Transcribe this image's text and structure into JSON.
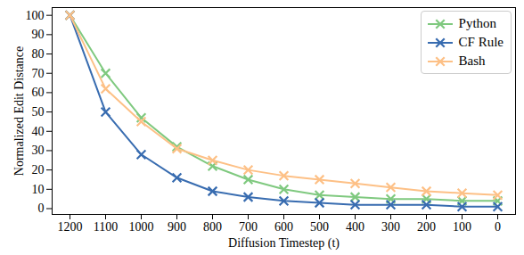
{
  "chart_data": {
    "type": "line",
    "x_label": "Diffusion Timestep (t)",
    "y_label": "Normalized Edit Distance",
    "categories": [
      "1200",
      "1100",
      "1000",
      "900",
      "800",
      "700",
      "600",
      "500",
      "400",
      "300",
      "200",
      "100",
      "0"
    ],
    "series": [
      {
        "name": "Python",
        "color": "#7fc97f",
        "marker": "x",
        "values": [
          100,
          70,
          47,
          32,
          22,
          15,
          10,
          7,
          6,
          5,
          5,
          4,
          4
        ]
      },
      {
        "name": "CF Rule",
        "color": "#386cb0",
        "marker": "x",
        "values": [
          100,
          50,
          28,
          16,
          9,
          6,
          4,
          3,
          2,
          2,
          2,
          1,
          1
        ]
      },
      {
        "name": "Bash",
        "color": "#fdc086",
        "marker": "x",
        "values": [
          100,
          62,
          45,
          31,
          25,
          20,
          17,
          15,
          13,
          11,
          9,
          8,
          7
        ]
      }
    ],
    "ylim": [
      -3,
      104
    ],
    "yticks": [
      0,
      10,
      20,
      30,
      40,
      50,
      60,
      70,
      80,
      90,
      100
    ],
    "grid": false,
    "legend": "top right"
  }
}
